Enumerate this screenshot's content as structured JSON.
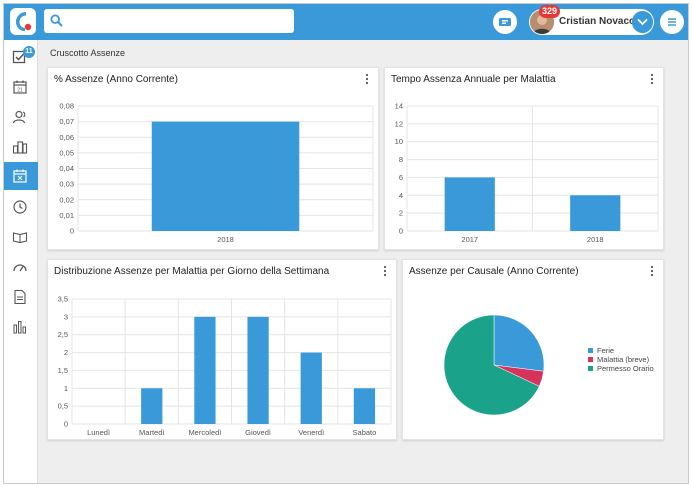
{
  "header": {
    "search_placeholder": "",
    "notification_count": "329",
    "user_name": "Cristian Novacco"
  },
  "sidebar": {
    "items": [
      {
        "icon": "checklist-icon",
        "badge": "11"
      },
      {
        "icon": "calendar-icon"
      },
      {
        "icon": "users-icon"
      },
      {
        "icon": "buildings-icon"
      },
      {
        "icon": "calendar-absence-icon",
        "active": true
      },
      {
        "icon": "clock-icon"
      },
      {
        "icon": "book-icon"
      },
      {
        "icon": "speedometer-icon"
      },
      {
        "icon": "document-icon"
      },
      {
        "icon": "bar-chart-icon"
      }
    ]
  },
  "breadcrumb": "Cruscotto Assenze",
  "colors": {
    "accent": "#3a9ad9",
    "bar": "#3a9ad9",
    "badge_red": "#e53935",
    "pie_ferie": "#3a9ad9",
    "pie_malattia": "#d6335c",
    "pie_permesso": "#1aa38a"
  },
  "cards": {
    "assenze_pct": {
      "title": "% Assenze (Anno Corrente)"
    },
    "tempo_malattia": {
      "title": "Tempo Assenza Annuale per Malattia"
    },
    "distribuzione": {
      "title": "Distribuzione Assenze per Malattia per Giorno della Settimana"
    },
    "causale": {
      "title": "Assenze per Causale (Anno Corrente)"
    }
  },
  "chart_data": [
    {
      "type": "bar",
      "title": "% Assenze (Anno Corrente)",
      "categories": [
        "2018"
      ],
      "values": [
        0.07
      ],
      "ylim": [
        0,
        0.08
      ],
      "yticks": [
        "0",
        "0,01",
        "0,02",
        "0,03",
        "0,04",
        "0,05",
        "0,06",
        "0,07",
        "0,08"
      ],
      "grid": true
    },
    {
      "type": "bar",
      "title": "Tempo Assenza Annuale per Malattia",
      "categories": [
        "2017",
        "2018"
      ],
      "values": [
        6,
        4
      ],
      "ylim": [
        0,
        14
      ],
      "yticks": [
        "0",
        "2",
        "4",
        "6",
        "8",
        "10",
        "12",
        "14"
      ],
      "grid": true
    },
    {
      "type": "bar",
      "title": "Distribuzione Assenze per Malattia per Giorno della Settimana",
      "categories": [
        "Lunedì",
        "Martedì",
        "Mercoledì",
        "Giovedì",
        "Venerdì",
        "Sabato"
      ],
      "values": [
        0,
        1,
        3,
        3,
        2,
        1
      ],
      "ylim": [
        0,
        3.5
      ],
      "yticks": [
        "0",
        "0,5",
        "1",
        "1,5",
        "2",
        "2,5",
        "3",
        "3,5"
      ],
      "grid": true
    },
    {
      "type": "pie",
      "title": "Assenze per Causale (Anno Corrente)",
      "labels": [
        "Ferie",
        "Malattia (breve)",
        "Permesso Orario"
      ],
      "values": [
        27,
        5,
        68
      ],
      "legend": "right"
    }
  ]
}
